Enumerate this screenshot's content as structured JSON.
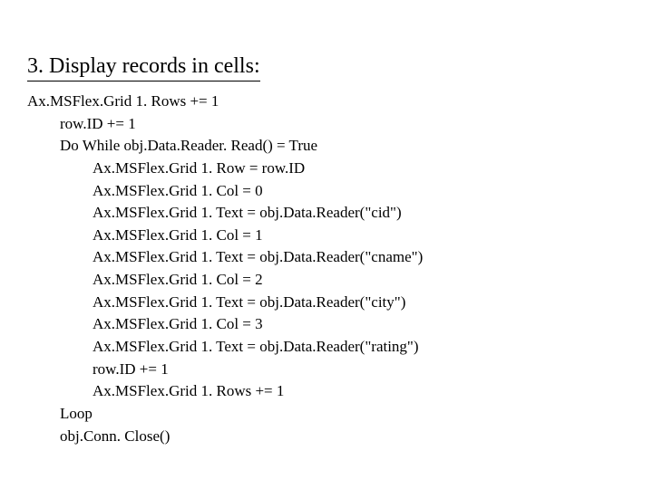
{
  "title": "3. Display records in cells:",
  "code": {
    "l1": "Ax.MSFlex.Grid 1. Rows += 1",
    "l2": "row.ID += 1",
    "l3": "Do While obj.Data.Reader. Read() = True",
    "l4": "Ax.MSFlex.Grid 1. Row = row.ID",
    "l5": "Ax.MSFlex.Grid 1. Col = 0",
    "l6": "Ax.MSFlex.Grid 1. Text = obj.Data.Reader(\"cid\")",
    "l7": "Ax.MSFlex.Grid 1. Col = 1",
    "l8": "Ax.MSFlex.Grid 1. Text = obj.Data.Reader(\"cname\")",
    "l9": "Ax.MSFlex.Grid 1. Col = 2",
    "l10": "Ax.MSFlex.Grid 1. Text = obj.Data.Reader(\"city\")",
    "l11": "Ax.MSFlex.Grid 1. Col = 3",
    "l12": "Ax.MSFlex.Grid 1. Text = obj.Data.Reader(\"rating\")",
    "l13": "row.ID += 1",
    "l14": "Ax.MSFlex.Grid 1. Rows += 1",
    "l15": "Loop",
    "l16": "obj.Conn. Close()"
  }
}
